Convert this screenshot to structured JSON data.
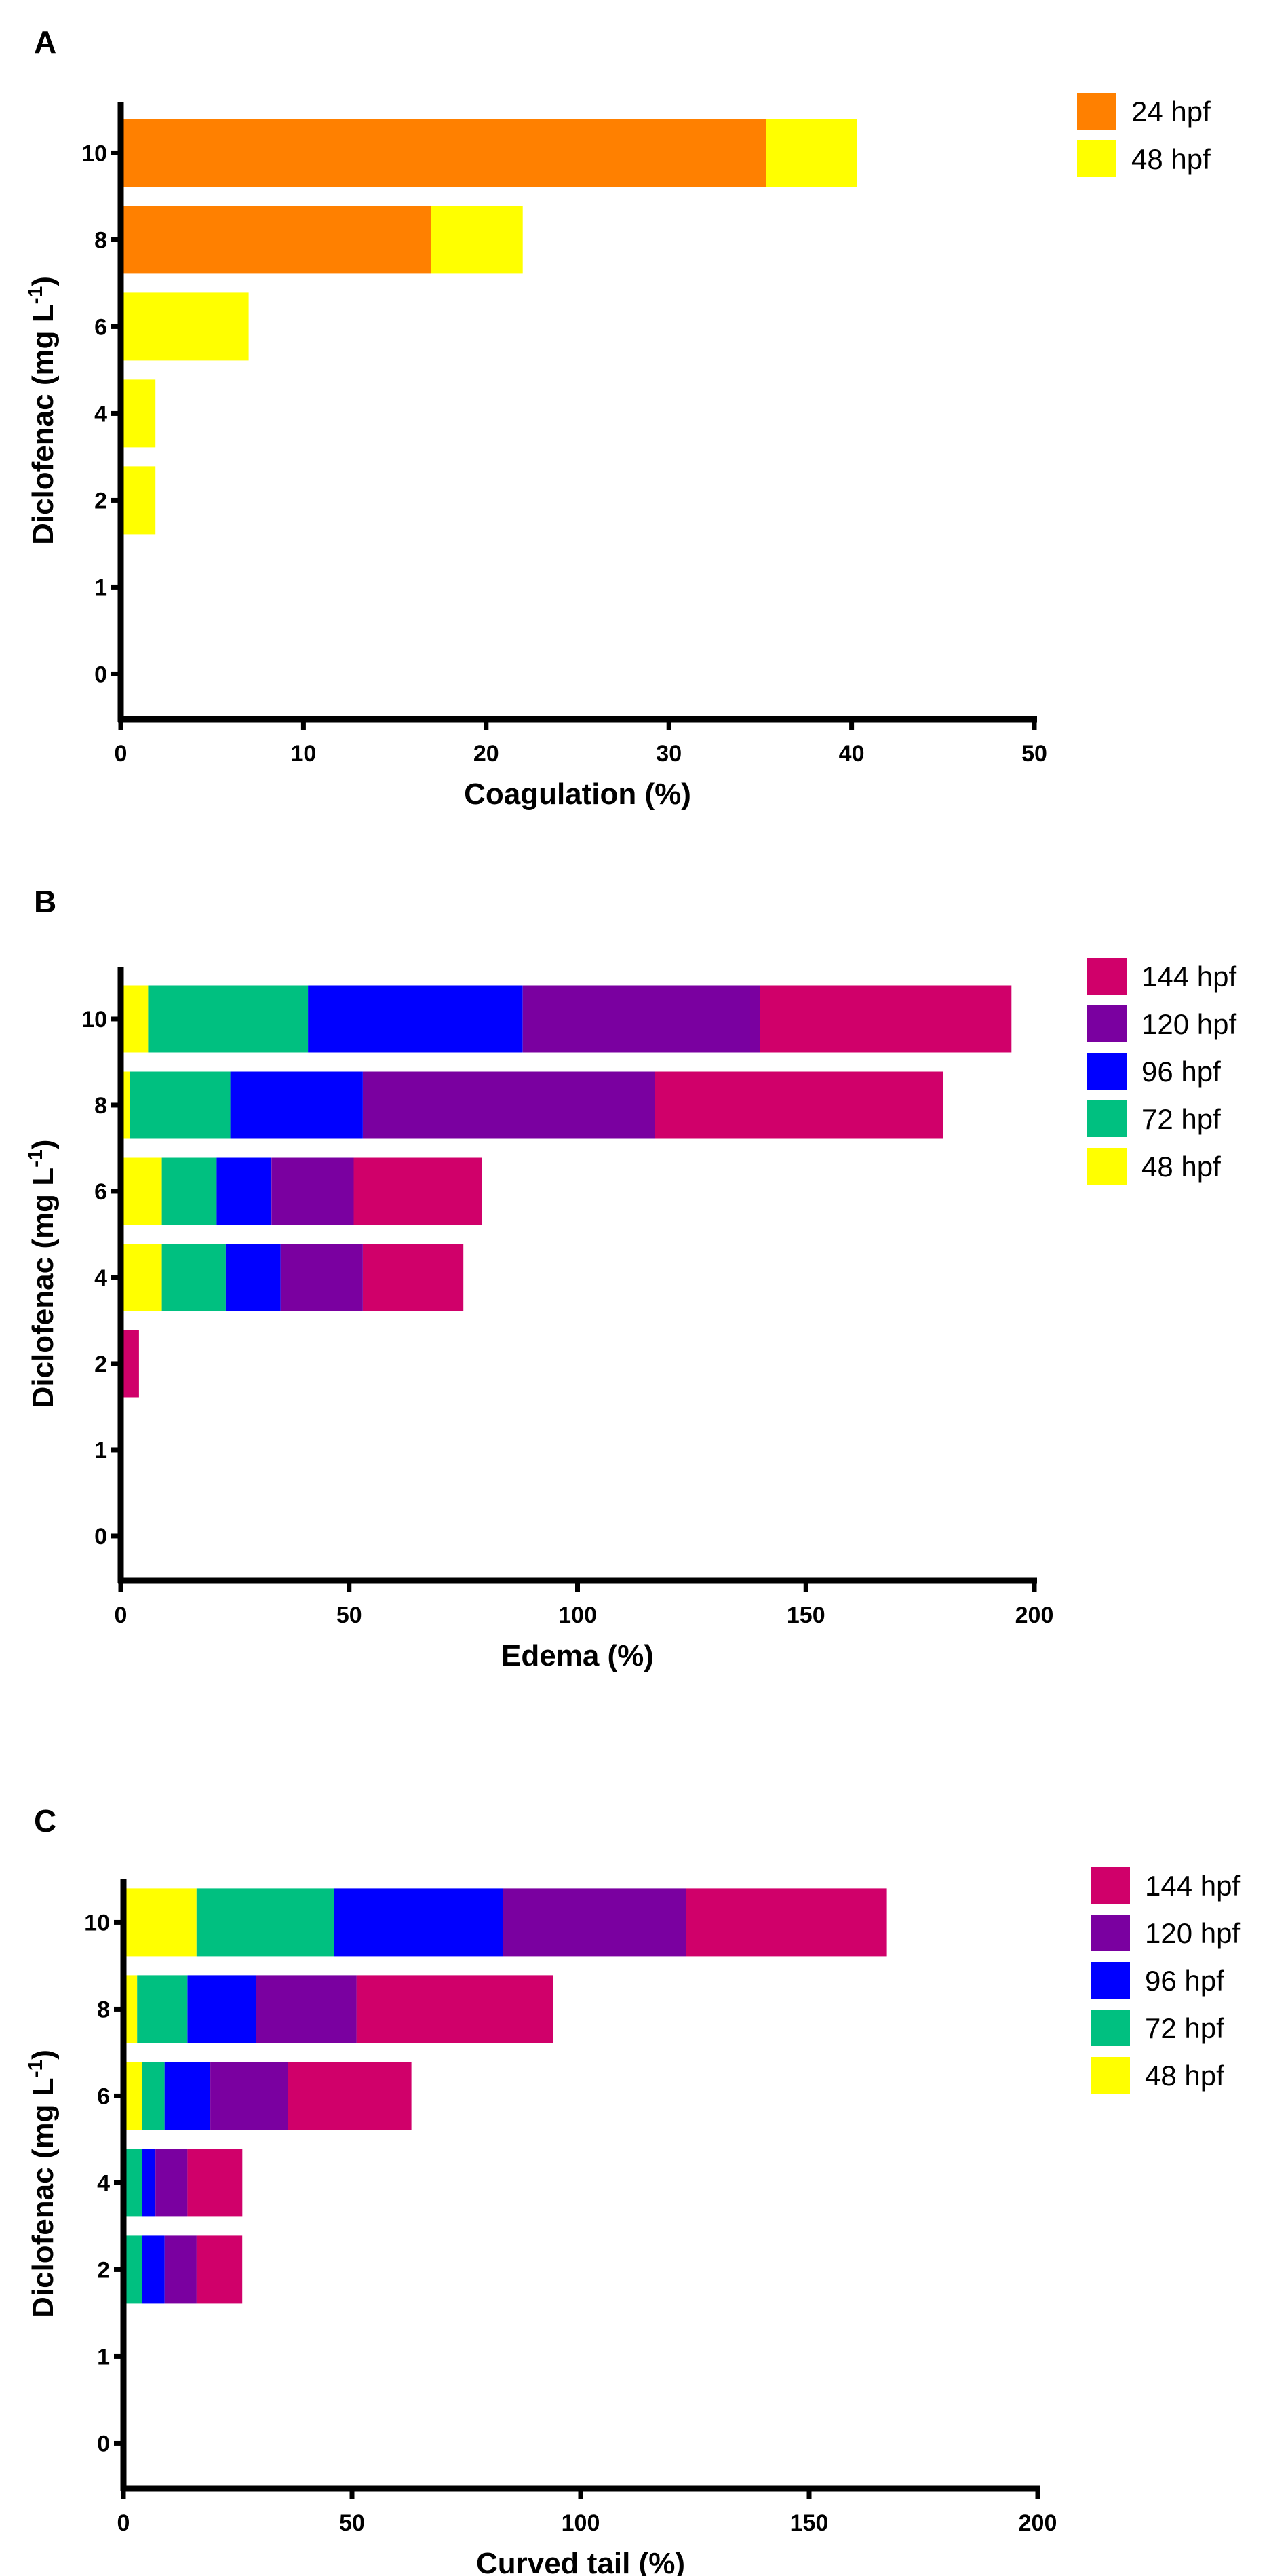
{
  "series_colors": {
    "24 hpf": "#ff8000",
    "48 hpf": "#ffff00",
    "72 hpf": "#00c080",
    "96 hpf": "#0000ff",
    "120 hpf": "#7a00a0",
    "144 hpf": "#d0006a"
  },
  "chart_data": [
    {
      "panel": "A",
      "type": "bar",
      "orientation": "horizontal",
      "stacked": true,
      "categories": [
        "0",
        "1",
        "2",
        "4",
        "6",
        "8",
        "10"
      ],
      "series": [
        {
          "name": "24 hpf",
          "values": [
            0,
            0,
            0,
            0,
            0,
            17,
            35.3
          ]
        },
        {
          "name": "48 hpf",
          "values": [
            0,
            0,
            1.9,
            1.9,
            7,
            5,
            5
          ]
        }
      ],
      "legend_order": [
        "24 hpf",
        "48 hpf"
      ],
      "xlabel": "Coagulation (%)",
      "ylabel": "Diclofenac (mg L-1)",
      "xlim": [
        0,
        50
      ],
      "xticks": [
        0,
        10,
        20,
        30,
        40,
        50
      ],
      "legend": "top-right",
      "grid": false
    },
    {
      "panel": "B",
      "type": "bar",
      "orientation": "horizontal",
      "stacked": true,
      "categories": [
        "0",
        "1",
        "2",
        "4",
        "6",
        "8",
        "10"
      ],
      "series": [
        {
          "name": "48 hpf",
          "values": [
            0,
            0,
            0,
            9,
            9,
            2,
            6
          ]
        },
        {
          "name": "72 hpf",
          "values": [
            0,
            0,
            0,
            14,
            12,
            22,
            35
          ]
        },
        {
          "name": "96 hpf",
          "values": [
            0,
            0,
            0,
            12,
            12,
            29,
            47
          ]
        },
        {
          "name": "120 hpf",
          "values": [
            0,
            0,
            0,
            18,
            18,
            64,
            52
          ]
        },
        {
          "name": "144 hpf",
          "values": [
            0,
            0,
            4,
            22,
            28,
            63,
            55
          ]
        }
      ],
      "legend_order": [
        "144 hpf",
        "120 hpf",
        "96 hpf",
        "72 hpf",
        "48 hpf"
      ],
      "xlabel": "Edema (%)",
      "ylabel": "Diclofenac (mg L-1)",
      "xlim": [
        0,
        200
      ],
      "xticks": [
        0,
        50,
        100,
        150,
        200
      ],
      "legend": "top-right",
      "grid": false
    },
    {
      "panel": "C",
      "type": "bar",
      "orientation": "horizontal",
      "stacked": true,
      "categories": [
        "0",
        "1",
        "2",
        "4",
        "6",
        "8",
        "10"
      ],
      "series": [
        {
          "name": "48 hpf",
          "values": [
            0,
            0,
            0,
            0,
            4,
            3,
            16
          ]
        },
        {
          "name": "72 hpf",
          "values": [
            0,
            0,
            4,
            4,
            5,
            11,
            30
          ]
        },
        {
          "name": "96 hpf",
          "values": [
            0,
            0,
            5,
            3,
            10,
            15,
            37
          ]
        },
        {
          "name": "120 hpf",
          "values": [
            0,
            0,
            7,
            7,
            17,
            22,
            40
          ]
        },
        {
          "name": "144 hpf",
          "values": [
            0,
            0,
            10,
            12,
            27,
            43,
            44
          ]
        }
      ],
      "legend_order": [
        "144 hpf",
        "120 hpf",
        "96 hpf",
        "72 hpf",
        "48 hpf"
      ],
      "xlabel": "Curved tail (%)",
      "ylabel": "Diclofenac (mg L-1)",
      "xlim": [
        0,
        200
      ],
      "xticks": [
        0,
        50,
        100,
        150,
        200
      ],
      "legend": "top-right",
      "grid": false
    }
  ]
}
